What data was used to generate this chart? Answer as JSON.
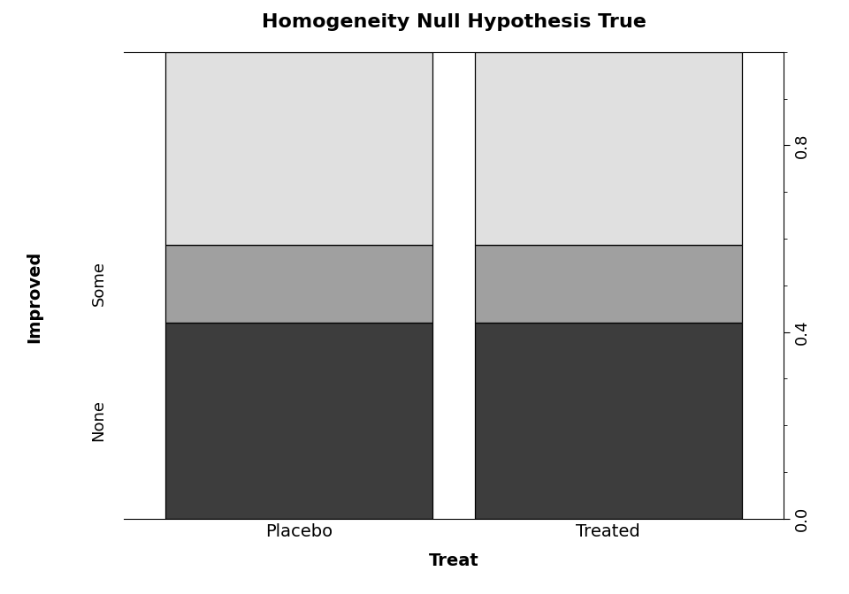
{
  "title": "Homogeneity Null Hypothesis True",
  "xlabel": "Treat",
  "ylabel_main": "Improved",
  "categories": [
    "Placebo",
    "Treated"
  ],
  "segments": [
    "None",
    "Some",
    "Improved"
  ],
  "proportions": [
    0.4202,
    0.1667,
    0.4131
  ],
  "colors": [
    "#3d3d3d",
    "#a0a0a0",
    "#e0e0e0"
  ],
  "ylim": [
    0.0,
    1.0
  ],
  "yticks": [
    0.0,
    0.4,
    0.8
  ],
  "ytick_labels": [
    "0.0",
    "0.4",
    "0.8"
  ],
  "background_color": "#ffffff",
  "segment_labels": [
    "None",
    "Some"
  ],
  "title_fontsize": 16,
  "axis_label_fontsize": 14,
  "tick_fontsize": 13
}
